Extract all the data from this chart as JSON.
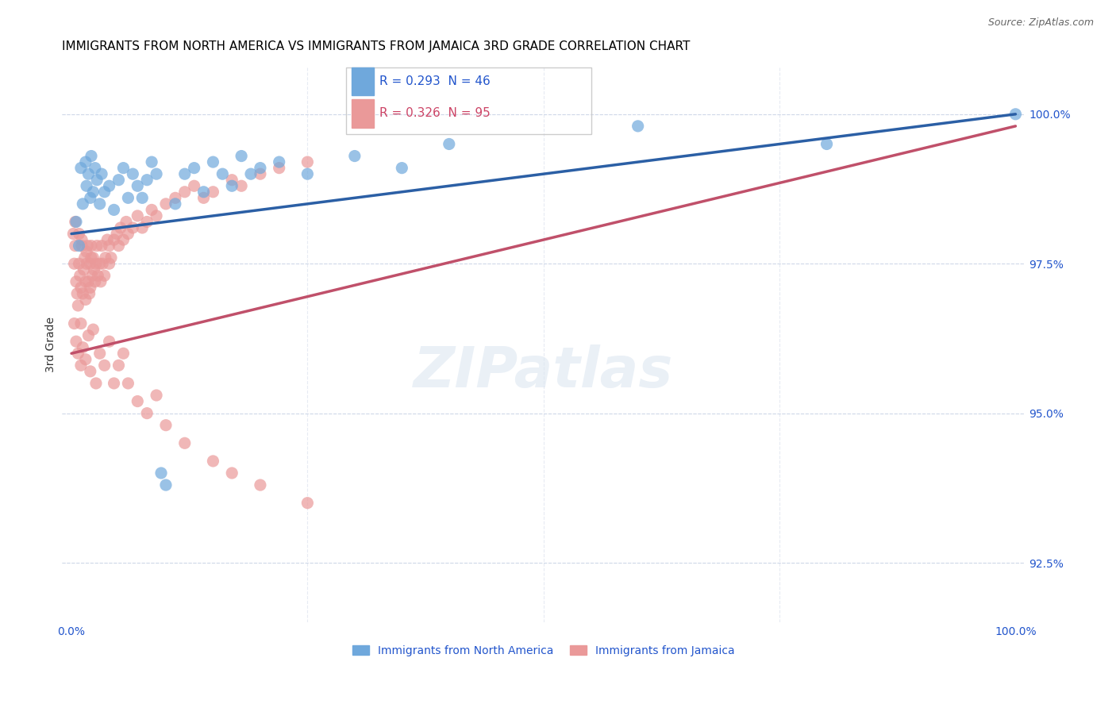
{
  "title": "IMMIGRANTS FROM NORTH AMERICA VS IMMIGRANTS FROM JAMAICA 3RD GRADE CORRELATION CHART",
  "source": "Source: ZipAtlas.com",
  "xlabel_bottom": "",
  "ylabel": "3rd Grade",
  "legend_label_blue": "Immigrants from North America",
  "legend_label_pink": "Immigrants from Jamaica",
  "x_tick_labels": [
    "0.0%",
    "100.0%"
  ],
  "y_tick_labels": [
    "92.5%",
    "95.0%",
    "97.5%",
    "100.0%"
  ],
  "y_lim": [
    91.5,
    100.8
  ],
  "x_lim": [
    -1.0,
    101.0
  ],
  "R_blue": 0.293,
  "N_blue": 46,
  "R_pink": 0.326,
  "N_pink": 95,
  "blue_color": "#6fa8dc",
  "pink_color": "#ea9999",
  "blue_line_color": "#2b5fa5",
  "pink_line_color": "#c0506a",
  "background_color": "#ffffff",
  "grid_color": "#d0d8e8",
  "title_color": "#000000",
  "source_color": "#666666",
  "axis_label_color": "#3333aa",
  "blue_scatter": {
    "x": [
      0.5,
      0.8,
      1.0,
      1.2,
      1.5,
      1.6,
      1.8,
      2.0,
      2.1,
      2.3,
      2.5,
      2.7,
      3.0,
      3.2,
      3.5,
      4.0,
      4.5,
      5.0,
      5.5,
      6.0,
      6.5,
      7.0,
      7.5,
      8.0,
      8.5,
      9.0,
      9.5,
      10.0,
      11.0,
      12.0,
      13.0,
      14.0,
      15.0,
      16.0,
      17.0,
      18.0,
      19.0,
      20.0,
      22.0,
      25.0,
      30.0,
      35.0,
      40.0,
      60.0,
      80.0,
      100.0
    ],
    "y": [
      98.2,
      97.8,
      99.1,
      98.5,
      99.2,
      98.8,
      99.0,
      98.6,
      99.3,
      98.7,
      99.1,
      98.9,
      98.5,
      99.0,
      98.7,
      98.8,
      98.4,
      98.9,
      99.1,
      98.6,
      99.0,
      98.8,
      98.6,
      98.9,
      99.2,
      99.0,
      94.0,
      93.8,
      98.5,
      99.0,
      99.1,
      98.7,
      99.2,
      99.0,
      98.8,
      99.3,
      99.0,
      99.1,
      99.2,
      99.0,
      99.3,
      99.1,
      99.5,
      99.8,
      99.5,
      100.0
    ]
  },
  "pink_scatter": {
    "x": [
      0.2,
      0.3,
      0.4,
      0.5,
      0.6,
      0.7,
      0.8,
      0.9,
      1.0,
      1.0,
      1.1,
      1.2,
      1.3,
      1.4,
      1.5,
      1.5,
      1.6,
      1.7,
      1.8,
      1.9,
      2.0,
      2.0,
      2.1,
      2.2,
      2.3,
      2.4,
      2.5,
      2.6,
      2.7,
      2.8,
      3.0,
      3.1,
      3.2,
      3.3,
      3.5,
      3.6,
      3.8,
      4.0,
      4.0,
      4.2,
      4.5,
      4.8,
      5.0,
      5.2,
      5.5,
      5.8,
      6.0,
      6.5,
      7.0,
      7.5,
      8.0,
      8.5,
      9.0,
      10.0,
      11.0,
      12.0,
      13.0,
      14.0,
      15.0,
      17.0,
      18.0,
      20.0,
      22.0,
      25.0,
      0.3,
      0.5,
      0.7,
      1.0,
      1.2,
      1.5,
      1.8,
      2.0,
      2.3,
      2.6,
      3.0,
      3.5,
      4.0,
      4.5,
      5.0,
      5.5,
      6.0,
      7.0,
      8.0,
      9.0,
      10.0,
      12.0,
      15.0,
      17.0,
      20.0,
      25.0,
      0.4,
      0.8,
      1.1,
      1.6,
      2.1
    ],
    "y": [
      98.0,
      97.5,
      97.8,
      97.2,
      97.0,
      96.8,
      97.5,
      97.3,
      97.1,
      96.5,
      97.8,
      97.0,
      97.4,
      97.6,
      97.2,
      96.9,
      97.5,
      97.8,
      97.2,
      97.0,
      97.5,
      97.1,
      97.8,
      97.3,
      97.6,
      97.4,
      97.2,
      97.5,
      97.8,
      97.3,
      97.5,
      97.2,
      97.8,
      97.5,
      97.3,
      97.6,
      97.9,
      97.5,
      97.8,
      97.6,
      97.9,
      98.0,
      97.8,
      98.1,
      97.9,
      98.2,
      98.0,
      98.1,
      98.3,
      98.1,
      98.2,
      98.4,
      98.3,
      98.5,
      98.6,
      98.7,
      98.8,
      98.6,
      98.7,
      98.9,
      98.8,
      99.0,
      99.1,
      99.2,
      96.5,
      96.2,
      96.0,
      95.8,
      96.1,
      95.9,
      96.3,
      95.7,
      96.4,
      95.5,
      96.0,
      95.8,
      96.2,
      95.5,
      95.8,
      96.0,
      95.5,
      95.2,
      95.0,
      95.3,
      94.8,
      94.5,
      94.2,
      94.0,
      93.8,
      93.5,
      98.2,
      98.0,
      97.9,
      97.7,
      97.6
    ]
  },
  "blue_line": {
    "x0": 0.0,
    "y0": 98.0,
    "x1": 100.0,
    "y1": 100.0
  },
  "pink_line": {
    "x0": 0.0,
    "y0": 96.0,
    "x1": 100.0,
    "y1": 99.8
  },
  "watermark": "ZIPatlas",
  "title_fontsize": 11,
  "axis_label_fontsize": 10,
  "tick_fontsize": 10
}
